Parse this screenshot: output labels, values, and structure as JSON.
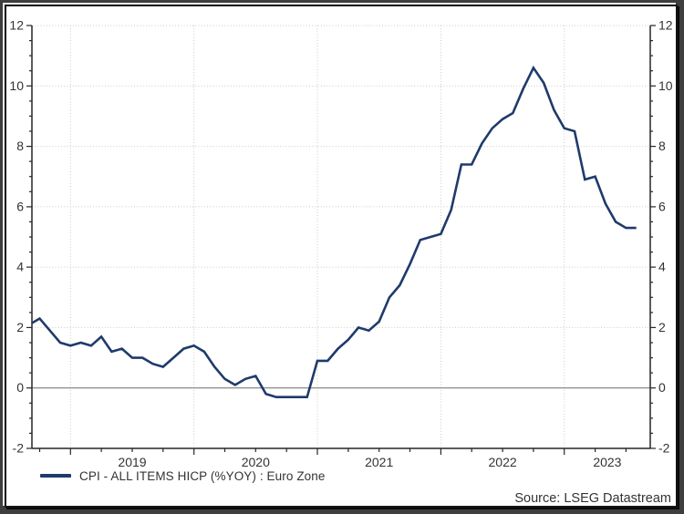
{
  "legend": {
    "label": "CPI - ALL ITEMS HICP (%YOY) : Euro Zone"
  },
  "source": {
    "text": "Source: LSEG Datastream"
  },
  "colors": {
    "line": "#1f3a6b",
    "grid": "#c9c9c9",
    "zero_line": "#7d7d7d",
    "axis": "#262626",
    "text": "#333333",
    "frame": "#3e3e3e"
  },
  "chart_data": {
    "type": "line",
    "title": "",
    "xlabel": "",
    "ylabel": "",
    "x": [
      "2018-09",
      "2018-10",
      "2018-11",
      "2018-12",
      "2019-01",
      "2019-02",
      "2019-03",
      "2019-04",
      "2019-05",
      "2019-06",
      "2019-07",
      "2019-08",
      "2019-09",
      "2019-10",
      "2019-11",
      "2019-12",
      "2020-01",
      "2020-02",
      "2020-03",
      "2020-04",
      "2020-05",
      "2020-06",
      "2020-07",
      "2020-08",
      "2020-09",
      "2020-10",
      "2020-11",
      "2020-12",
      "2021-01",
      "2021-02",
      "2021-03",
      "2021-04",
      "2021-05",
      "2021-06",
      "2021-07",
      "2021-08",
      "2021-09",
      "2021-10",
      "2021-11",
      "2021-12",
      "2022-01",
      "2022-02",
      "2022-03",
      "2022-04",
      "2022-05",
      "2022-06",
      "2022-07",
      "2022-08",
      "2022-09",
      "2022-10",
      "2022-11",
      "2022-12",
      "2023-01",
      "2023-02",
      "2023-03",
      "2023-04",
      "2023-05",
      "2023-06",
      "2023-07",
      "2023-08"
    ],
    "series": [
      {
        "name": "CPI - ALL ITEMS HICP (%YOY) : Euro Zone",
        "color": "#1f3a6b",
        "values": [
          2.1,
          2.3,
          1.9,
          1.5,
          1.4,
          1.5,
          1.4,
          1.7,
          1.2,
          1.3,
          1.0,
          1.0,
          0.8,
          0.7,
          1.0,
          1.3,
          1.4,
          1.2,
          0.7,
          0.3,
          0.1,
          0.3,
          0.4,
          -0.2,
          -0.3,
          -0.3,
          -0.3,
          -0.3,
          0.9,
          0.9,
          1.3,
          1.6,
          2.0,
          1.9,
          2.2,
          3.0,
          3.4,
          4.1,
          4.9,
          5.0,
          5.1,
          5.9,
          7.4,
          7.4,
          8.1,
          8.6,
          8.9,
          9.1,
          9.9,
          10.6,
          10.1,
          9.2,
          8.6,
          8.5,
          6.9,
          7.0,
          6.1,
          5.5,
          5.3,
          5.3
        ]
      }
    ],
    "x_axis": {
      "year_labels": [
        "2019",
        "2020",
        "2021",
        "2022",
        "2023"
      ],
      "minor_tick_every_months": 3,
      "major_tick_every_months": 12
    },
    "y_axis": {
      "range": [
        -2,
        12
      ],
      "ticks": [
        -2,
        0,
        2,
        4,
        6,
        8,
        10,
        12
      ],
      "minor_step": 0.5,
      "sides": "both"
    },
    "grid": {
      "horizontal_dotted": true,
      "vertical_dotted_on_years": true
    },
    "zero_line": true,
    "legend_position": "bottom-left"
  }
}
